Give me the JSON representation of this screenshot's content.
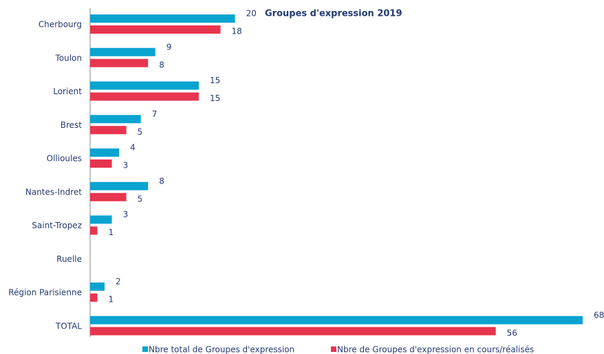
{
  "chart_data": {
    "type": "bar",
    "orientation": "horizontal",
    "title": "Groupes d'expression 2019",
    "categories": [
      "Cherbourg",
      "Toulon",
      "Lorient",
      "Brest",
      "Ollioules",
      "Nantes-Indret",
      "Saint-Tropez",
      "Ruelle",
      "Région Parisienne",
      "TOTAL"
    ],
    "series": [
      {
        "name": "Nbre total de Groupes d'expression",
        "color": "#0aa3d0",
        "values": [
          20,
          9,
          15,
          7,
          4,
          8,
          3,
          null,
          2,
          68
        ]
      },
      {
        "name": "Nbre de Groupes d'expression en cours/réalisés",
        "color": "#e8354f",
        "values": [
          18,
          8,
          15,
          5,
          3,
          5,
          1,
          null,
          1,
          56
        ]
      }
    ]
  }
}
